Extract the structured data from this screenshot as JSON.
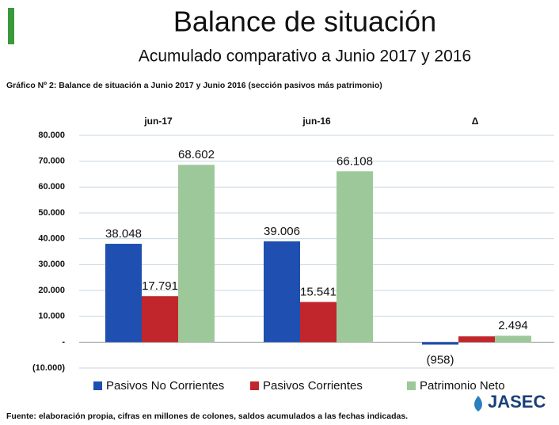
{
  "chart_data": {
    "type": "bar",
    "title": "Balance de situación",
    "subtitle": "Acumulado comparativo a Junio 2017 y 2016",
    "caption": "Gráfico Nº 2: Balance de situación a Junio 2017 y Junio 2016 (sección pasivos más patrimonio)",
    "source": "Fuente: elaboración propia, cifras en millones de colones, saldos acumulados a las fechas indicadas.",
    "logo": "JASEC",
    "categories": [
      "jun-17",
      "jun-16",
      "Δ"
    ],
    "series": [
      {
        "name": "Pasivos No Corrientes",
        "color": "#1f4fb0",
        "values": [
          38048,
          39006,
          -958
        ],
        "value_labels": [
          "38.048",
          "39.006",
          "(958)"
        ]
      },
      {
        "name": "Pasivos Corrientes",
        "color": "#c0262b",
        "values": [
          17791,
          15541,
          2250
        ],
        "value_labels": [
          "17.791",
          "15.541",
          null
        ]
      },
      {
        "name": "Patrimonio Neto",
        "color": "#9dc99a",
        "values": [
          68602,
          66108,
          2494
        ],
        "value_labels": [
          "68.602",
          "66.108",
          "2.494"
        ]
      }
    ],
    "ylim": [
      -10000,
      80000
    ],
    "yticks": [
      {
        "value": -10000,
        "label": "(10.000)"
      },
      {
        "value": 0,
        "label": "-"
      },
      {
        "value": 10000,
        "label": "10.000"
      },
      {
        "value": 20000,
        "label": "20.000"
      },
      {
        "value": 30000,
        "label": "30.000"
      },
      {
        "value": 40000,
        "label": "40.000"
      },
      {
        "value": 50000,
        "label": "50.000"
      },
      {
        "value": 60000,
        "label": "60.000"
      },
      {
        "value": 70000,
        "label": "70.000"
      },
      {
        "value": 80000,
        "label": "80.000"
      }
    ],
    "grid": true,
    "legend": "bottom"
  }
}
